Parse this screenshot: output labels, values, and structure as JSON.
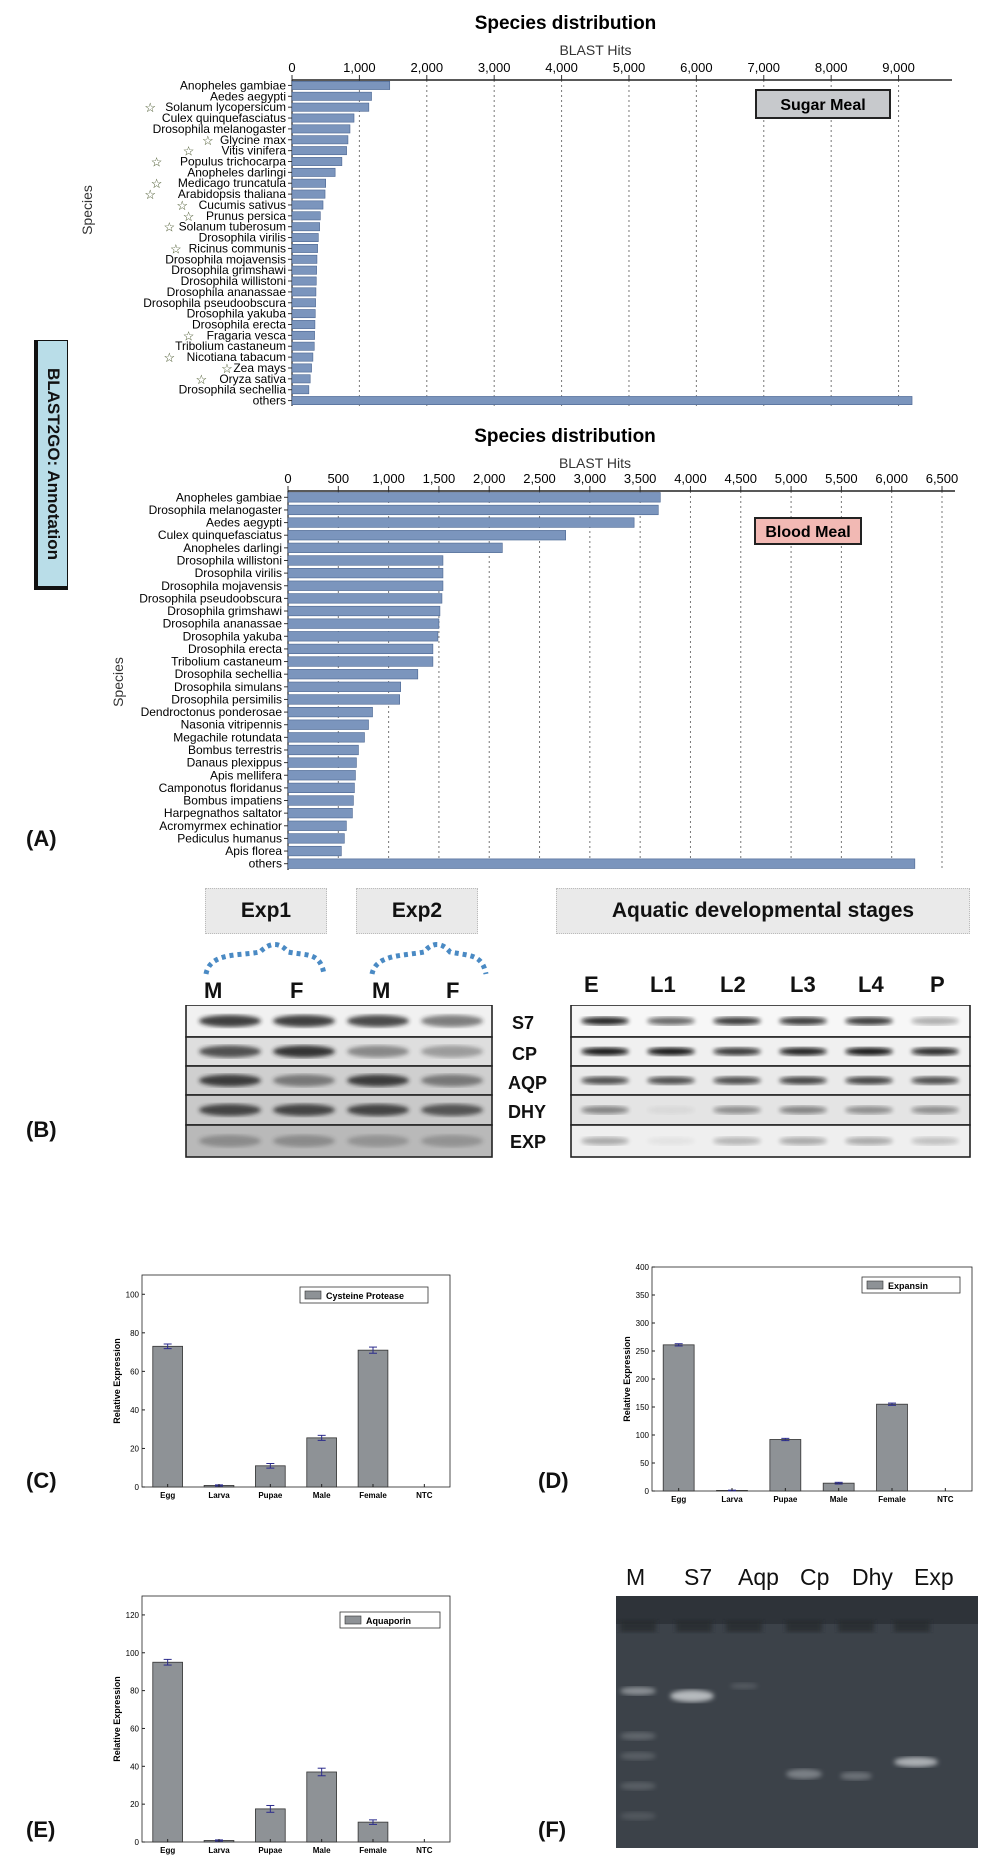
{
  "side_label": "BLAST2GO: Annotation",
  "panel_letters": {
    "a": "(A)",
    "b": "(B)",
    "c": "(C)",
    "d": "(D)",
    "e": "(E)",
    "f": "(F)"
  },
  "colors": {
    "bar_blue": "#7b95bd",
    "bar_gray": "#8e9296",
    "sugar_box": "#c7c9cc",
    "blood_box": "#f2b9b4",
    "annot_box": "#b9dde8",
    "error_bar": "#2b2b8c"
  },
  "chart_data": [
    {
      "id": "sugar",
      "type": "bar",
      "orientation": "horizontal",
      "title": "Species distribution",
      "xlabel": "BLAST Hits",
      "ylabel": "Species",
      "legend_box": "Sugar Meal",
      "xlim": [
        0,
        9600
      ],
      "xticks": [
        0,
        1000,
        2000,
        3000,
        4000,
        5000,
        6000,
        7000,
        8000,
        9000
      ],
      "xtick_labels": [
        "0",
        "1,000",
        "2,000",
        "3,000",
        "4,000",
        "5,000",
        "6,000",
        "7,000",
        "8,000",
        "9,000"
      ],
      "grid": "x-dotted",
      "categories": [
        "Anopheles gambiae",
        "Aedes aegypti",
        "Solanum lycopersicum",
        "Culex quinquefasciatus",
        "Drosophila melanogaster",
        "Glycine max",
        "Vitis vinifera",
        "Populus trichocarpa",
        "Anopheles darlingi",
        "Medicago truncatula",
        "Arabidopsis thaliana",
        "Cucumis sativus",
        "Prunus persica",
        "Solanum tuberosum",
        "Drosophila virilis",
        "Ricinus communis",
        "Drosophila mojavensis",
        "Drosophila grimshawi",
        "Drosophila willistoni",
        "Drosophila ananassae",
        "Drosophila pseudoobscura",
        "Drosophila yakuba",
        "Drosophila erecta",
        "Fragaria vesca",
        "Tribolium castaneum",
        "Nicotiana tabacum",
        "Zea mays",
        "Oryza sativa",
        "Drosophila sechellia",
        "others"
      ],
      "starred": [
        2,
        5,
        6,
        7,
        9,
        10,
        11,
        12,
        13,
        15,
        23,
        25,
        26,
        27
      ],
      "values": [
        1450,
        1180,
        1140,
        920,
        860,
        830,
        810,
        740,
        640,
        500,
        490,
        460,
        420,
        410,
        390,
        380,
        370,
        365,
        360,
        355,
        350,
        345,
        340,
        335,
        330,
        310,
        290,
        270,
        250,
        9200
      ]
    },
    {
      "id": "blood",
      "type": "bar",
      "orientation": "horizontal",
      "title": "Species distribution",
      "xlabel": "BLAST Hits",
      "ylabel": "Species",
      "legend_box": "Blood Meal",
      "xlim": [
        0,
        6500
      ],
      "xticks": [
        0,
        500,
        1000,
        1500,
        2000,
        2500,
        3000,
        3500,
        4000,
        4500,
        5000,
        5500,
        6000,
        6500
      ],
      "xtick_labels": [
        "0",
        "500",
        "1,000",
        "1,500",
        "2,000",
        "2,500",
        "3,000",
        "3,500",
        "4,000",
        "4,500",
        "5,000",
        "5,500",
        "6,000",
        "6,500"
      ],
      "grid": "x-dotted",
      "categories": [
        "Anopheles gambiae",
        "Drosophila melanogaster",
        "Aedes aegypti",
        "Culex quinquefasciatus",
        "Anopheles darlingi",
        "Drosophila willistoni",
        "Drosophila virilis",
        "Drosophila mojavensis",
        "Drosophila pseudoobscura",
        "Drosophila grimshawi",
        "Drosophila ananassae",
        "Drosophila yakuba",
        "Drosophila erecta",
        "Tribolium castaneum",
        "Drosophila sechellia",
        "Drosophila simulans",
        "Drosophila persimilis",
        "Dendroctonus ponderosae",
        "Nasonia vitripennis",
        "Megachile rotundata",
        "Bombus terrestris",
        "Danaus plexippus",
        "Apis mellifera",
        "Camponotus floridanus",
        "Bombus impatiens",
        "Harpegnathos saltator",
        "Acromyrmex echinatior",
        "Pediculus humanus",
        "Apis florea",
        "others"
      ],
      "values": [
        3700,
        3680,
        3440,
        2760,
        2130,
        1540,
        1540,
        1540,
        1530,
        1510,
        1500,
        1490,
        1440,
        1440,
        1290,
        1120,
        1110,
        840,
        800,
        760,
        700,
        680,
        670,
        660,
        650,
        640,
        580,
        560,
        530,
        6230
      ]
    },
    {
      "id": "cysteine",
      "type": "bar",
      "legend": "Cysteine Protease",
      "ylabel": "Relative Expression",
      "ylim": [
        0,
        110
      ],
      "yticks": [
        0,
        20,
        40,
        60,
        80,
        100
      ],
      "categories": [
        "Egg",
        "Larva",
        "Pupae",
        "Male",
        "Female",
        "NTC"
      ],
      "values": [
        73,
        0.8,
        11,
        25.5,
        71,
        0
      ],
      "errors": [
        1.2,
        0.3,
        1.2,
        1.3,
        1.6,
        0
      ]
    },
    {
      "id": "expansin",
      "type": "bar",
      "legend": "Expansin",
      "ylabel": "Relative Expression",
      "ylim": [
        0,
        400
      ],
      "yticks": [
        0,
        50,
        100,
        150,
        200,
        250,
        300,
        350,
        400
      ],
      "categories": [
        "Egg",
        "Larva",
        "Pupae",
        "Male",
        "Female",
        "NTC"
      ],
      "values": [
        261,
        1,
        92,
        14,
        155,
        0
      ],
      "errors": [
        2,
        0.5,
        2,
        1.5,
        2,
        0
      ]
    },
    {
      "id": "aquaporin",
      "type": "bar",
      "legend": "Aquaporin",
      "ylabel": "Relative Expression",
      "ylim": [
        0,
        130
      ],
      "yticks": [
        0,
        20,
        40,
        60,
        80,
        100,
        120
      ],
      "categories": [
        "Egg",
        "Larva",
        "Pupae",
        "Male",
        "Female",
        "NTC"
      ],
      "values": [
        95,
        0.8,
        17.5,
        37,
        10.5,
        0
      ],
      "errors": [
        1.5,
        0.3,
        1.8,
        2,
        1.2,
        0
      ]
    }
  ],
  "gel_b": {
    "headers": [
      "Exp1",
      "Exp2",
      "Aquatic developmental  stages"
    ],
    "exp_lanes": [
      "M",
      "F",
      "M",
      "F"
    ],
    "stage_lanes": [
      "E",
      "L1",
      "L2",
      "L3",
      "L4",
      "P"
    ],
    "rows": [
      "S7",
      "CP",
      "AQP",
      "DHY",
      "EXP"
    ]
  },
  "gel_f": {
    "lanes": [
      "M",
      "S7",
      "Aqp",
      "Cp",
      "Dhy",
      "Exp"
    ]
  }
}
